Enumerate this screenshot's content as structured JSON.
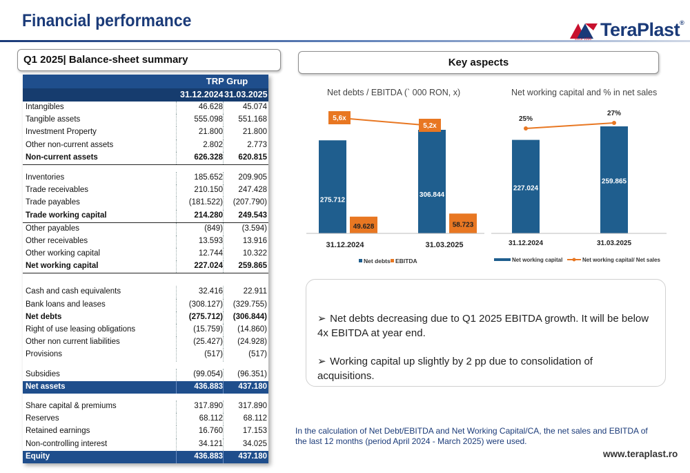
{
  "header": {
    "title": "Financial performance",
    "logo_text": "TeraPlast",
    "logo_reg": "®",
    "logo_since": "since 1896",
    "brand_color": "#1a3a78",
    "accent_color": "#c8102e"
  },
  "left_section": {
    "title": "Q1 2025| Balance-sheet summary"
  },
  "right_section": {
    "title": "Key aspects"
  },
  "table": {
    "group": "TRP Grup",
    "col1": "31.12.2024",
    "col2": "31.03.2025",
    "rows": [
      {
        "label": "Intangibles",
        "v1": "46.628",
        "v2": "45.074"
      },
      {
        "label": "Tangible assets",
        "v1": "555.098",
        "v2": "551.168"
      },
      {
        "label": "Investment Property",
        "v1": "21.800",
        "v2": "21.800"
      },
      {
        "label": "Other non-current assets",
        "v1": "2.802",
        "v2": "2.773"
      },
      {
        "label": "Non-current assets",
        "v1": "626.328",
        "v2": "620.815"
      },
      {
        "label": "Inventories",
        "v1": "185.652",
        "v2": "209.905"
      },
      {
        "label": "Trade receivables",
        "v1": "210.150",
        "v2": "247.428"
      },
      {
        "label": "Trade payables",
        "v1": "(181.522)",
        "v2": "(207.790)"
      },
      {
        "label": "Trade working capital",
        "v1": "214.280",
        "v2": "249.543"
      },
      {
        "label": "Other payables",
        "v1": "(849)",
        "v2": "(3.594)"
      },
      {
        "label": "Other receivables",
        "v1": "13.593",
        "v2": "13.916"
      },
      {
        "label": "Other working capital",
        "v1": "12.744",
        "v2": "10.322"
      },
      {
        "label": "Net working capital",
        "v1": "227.024",
        "v2": "259.865"
      },
      {
        "label": "Cash and cash equivalents",
        "v1": "32.416",
        "v2": "22.911"
      },
      {
        "label": "Bank loans and leases",
        "v1": "(308.127)",
        "v2": "(329.755)"
      },
      {
        "label": "Net debts",
        "v1": "(275.712)",
        "v2": "(306.844)"
      },
      {
        "label": "Right of use leasing obligations",
        "v1": "(15.759)",
        "v2": "(14.860)"
      },
      {
        "label": "Other non current liabilities",
        "v1": "(25.427)",
        "v2": "(24.928)"
      },
      {
        "label": "Provisions",
        "v1": "(517)",
        "v2": "(517)"
      },
      {
        "label": "Subsidies",
        "v1": "(99.054)",
        "v2": "(96.351)"
      },
      {
        "label": "Net assets",
        "v1": "436.883",
        "v2": "437.180"
      },
      {
        "label": "Share capital & premiums",
        "v1": "317.890",
        "v2": "317.890"
      },
      {
        "label": "Reserves",
        "v1": "68.112",
        "v2": "68.112"
      },
      {
        "label": "Retained earnings",
        "v1": "16.760",
        "v2": "17.153"
      },
      {
        "label": "Non-controlling interest",
        "v1": "34.121",
        "v2": "34.025"
      },
      {
        "label": "Equity",
        "v1": "436.883",
        "v2": "437.180"
      }
    ]
  },
  "chart_data": [
    {
      "type": "bar",
      "title": "Net debts / EBITDA (` 000 RON, x)",
      "categories": [
        "31.12.2024",
        "31.03.2025"
      ],
      "series": [
        {
          "name": "Net debts",
          "values": [
            275712,
            306844
          ],
          "labels": [
            "275.712",
            "306.844"
          ],
          "color": "#1f5e8e"
        },
        {
          "name": "EBITDA",
          "values": [
            49628,
            58723
          ],
          "labels": [
            "49.628",
            "58.723"
          ],
          "color": "#e87722"
        }
      ],
      "ratio": {
        "values": [
          5.6,
          5.2
        ],
        "labels": [
          "5,6x",
          "5,2x"
        ],
        "color": "#e87722"
      },
      "legend": "bottom"
    },
    {
      "type": "bar",
      "title": "Net working capital and % in net sales",
      "categories": [
        "31.12.2024",
        "31.03.2025"
      ],
      "series": [
        {
          "name": "Net working capital",
          "values": [
            227024,
            259865
          ],
          "labels": [
            "227.024",
            "259.865"
          ],
          "color": "#1f5e8e"
        }
      ],
      "line": {
        "name": "Net working capital/ Net sales",
        "values": [
          25,
          27
        ],
        "labels": [
          "25%",
          "27%"
        ],
        "color": "#e87722"
      },
      "legend": "bottom"
    }
  ],
  "bullets": [
    "Net debts decreasing due to Q1 2025 EBITDA growth. It will be below 4x EBITDA at year end.",
    "Working capital up slightly by 2 pp due to consolidation of acquisitions."
  ],
  "bullet_symbol": "➢",
  "note": "In the calculation of Net Debt/EBITDA and Net Working Capital/CA, the net sales and EBITDA of the last 12 months (period April 2024 - March 2025) were used.",
  "footer": {
    "url": "www.teraplast.ro"
  }
}
